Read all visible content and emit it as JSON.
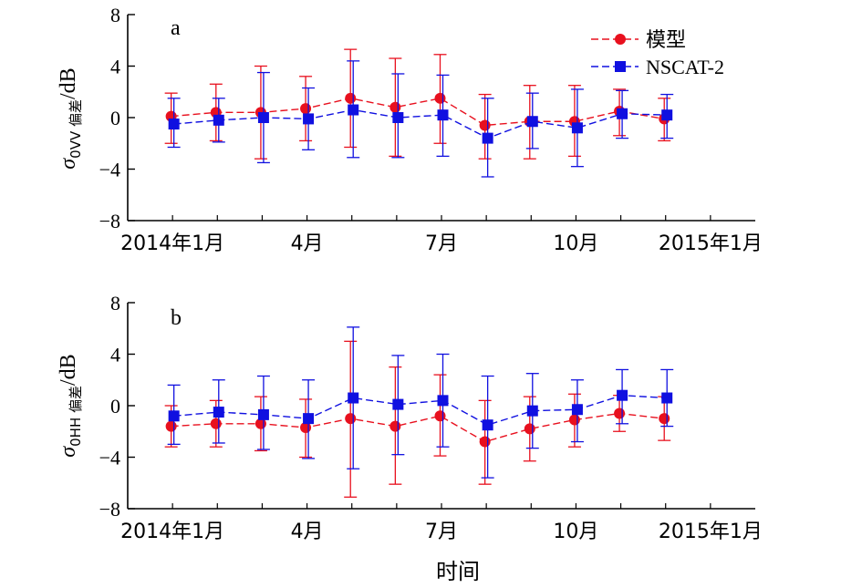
{
  "chart_data": [
    {
      "panel": "a",
      "type": "line",
      "ylabel_symbol": "σ",
      "ylabel_subscript": "0VV 偏差",
      "ylabel_unit": "/dB",
      "xlabel": "",
      "ylim": [
        -8,
        8
      ],
      "yticks": [
        -8,
        -4,
        0,
        4,
        8
      ],
      "ytick_labels": [
        "−8",
        "−4",
        "0",
        "4",
        "8"
      ],
      "xtick_labels": [
        "2014年1月",
        "4月",
        "7月",
        "10月",
        "2015年1月"
      ],
      "xtick_months": [
        1,
        4,
        7,
        10,
        13
      ],
      "x_months": [
        1,
        2,
        3,
        4,
        5,
        6,
        7,
        8,
        9,
        10,
        11,
        12,
        13
      ],
      "grid": false,
      "legend_position": "top-right",
      "series": [
        {
          "name": "模型",
          "color": "#e8101e",
          "marker": "circle",
          "values": [
            0.1,
            0.4,
            0.4,
            0.7,
            1.5,
            0.8,
            1.5,
            -0.6,
            -0.3,
            -0.3,
            0.5,
            -0.1,
            null
          ],
          "err_low": [
            -2.0,
            -1.8,
            -3.2,
            -1.8,
            -2.3,
            -3.0,
            -2.0,
            -3.2,
            -3.2,
            -3.0,
            -1.4,
            -1.8,
            null
          ],
          "err_high": [
            1.9,
            2.6,
            4.0,
            3.2,
            5.3,
            4.6,
            4.9,
            1.8,
            2.5,
            2.5,
            2.2,
            1.5,
            null
          ]
        },
        {
          "name": "NSCAT-2",
          "color": "#1010e0",
          "marker": "square",
          "values": [
            -0.5,
            -0.2,
            0.0,
            -0.1,
            0.6,
            0.0,
            0.2,
            -1.6,
            -0.3,
            -0.8,
            0.3,
            0.2,
            null
          ],
          "err_low": [
            -2.3,
            -1.9,
            -3.5,
            -2.5,
            -3.1,
            -3.1,
            -3.0,
            -4.6,
            -2.4,
            -3.8,
            -1.6,
            -1.6,
            null
          ],
          "err_high": [
            1.5,
            1.5,
            3.5,
            2.3,
            4.4,
            3.4,
            3.3,
            1.5,
            1.9,
            2.2,
            2.1,
            1.8,
            null
          ]
        }
      ]
    },
    {
      "panel": "b",
      "type": "line",
      "ylabel_symbol": "σ",
      "ylabel_subscript": "0HH 偏差",
      "ylabel_unit": "/dB",
      "xlabel": "时间",
      "ylim": [
        -8,
        8
      ],
      "yticks": [
        -8,
        -4,
        0,
        4,
        8
      ],
      "ytick_labels": [
        "−8",
        "−4",
        "0",
        "4",
        "8"
      ],
      "xtick_labels": [
        "2014年1月",
        "4月",
        "7月",
        "10月",
        "2015年1月"
      ],
      "xtick_months": [
        1,
        4,
        7,
        10,
        13
      ],
      "x_months": [
        1,
        2,
        3,
        4,
        5,
        6,
        7,
        8,
        9,
        10,
        11,
        12,
        13
      ],
      "grid": false,
      "series": [
        {
          "name": "模型",
          "color": "#e8101e",
          "marker": "circle",
          "values": [
            -1.6,
            -1.4,
            -1.4,
            -1.7,
            -1.0,
            -1.6,
            -0.8,
            -2.8,
            -1.8,
            -1.1,
            -0.6,
            -1.0,
            null
          ],
          "err_low": [
            -3.2,
            -3.2,
            -3.5,
            -4.0,
            -7.1,
            -6.1,
            -3.9,
            -6.1,
            -4.3,
            -3.2,
            -2.0,
            -2.7,
            null
          ],
          "err_high": [
            0.0,
            0.4,
            0.7,
            0.5,
            5.0,
            3.0,
            2.4,
            0.4,
            0.7,
            0.9,
            0.8,
            0.7,
            null
          ]
        },
        {
          "name": "NSCAT-2",
          "color": "#1010e0",
          "marker": "square",
          "values": [
            -0.8,
            -0.5,
            -0.7,
            -1.0,
            0.6,
            0.1,
            0.4,
            -1.5,
            -0.4,
            -0.3,
            0.8,
            0.6,
            null
          ],
          "err_low": [
            -3.0,
            -2.9,
            -3.4,
            -4.1,
            -4.9,
            -3.8,
            -3.2,
            -5.6,
            -3.3,
            -2.8,
            -1.4,
            -1.6,
            null
          ],
          "err_high": [
            1.6,
            2.0,
            2.3,
            2.0,
            6.1,
            3.9,
            4.0,
            2.3,
            2.5,
            2.0,
            2.8,
            2.8,
            null
          ]
        }
      ]
    }
  ]
}
